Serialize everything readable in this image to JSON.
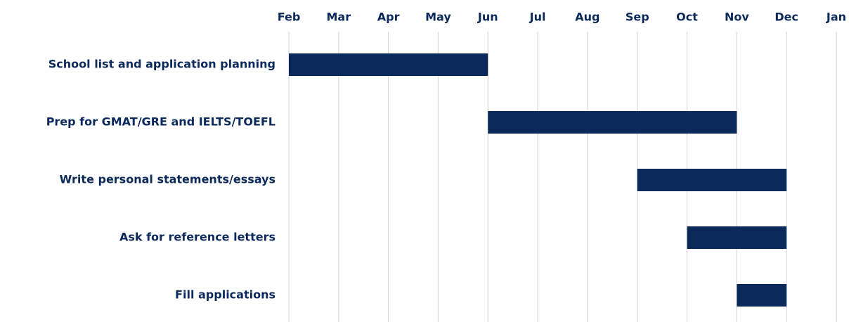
{
  "chart_data": {
    "type": "gantt",
    "categories": [
      "School list and application planning",
      "Prep for GMAT/GRE and IELTS/TOEFL",
      "Write personal statements/essays",
      "Ask for reference letters",
      "Fill applications"
    ],
    "start": [
      0,
      4,
      7,
      8,
      9
    ],
    "end": [
      4,
      9,
      10,
      10,
      10
    ],
    "color": "#0b2a5b",
    "xlim": [
      0,
      11
    ],
    "xticks": [
      {
        "value": 0,
        "label": "Feb"
      },
      {
        "value": 1,
        "label": "Mar"
      },
      {
        "value": 2,
        "label": "Apr"
      },
      {
        "value": 3,
        "label": "May"
      },
      {
        "value": 4,
        "label": "Jun"
      },
      {
        "value": 5,
        "label": "Jul"
      },
      {
        "value": 6,
        "label": "Aug"
      },
      {
        "value": 7,
        "label": "Sep"
      },
      {
        "value": 8,
        "label": "Oct"
      },
      {
        "value": 9,
        "label": "Nov"
      },
      {
        "value": 10,
        "label": "Dec"
      },
      {
        "value": 11,
        "label": "Jan"
      }
    ],
    "grid": true
  }
}
